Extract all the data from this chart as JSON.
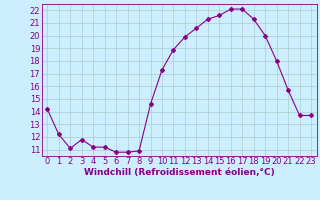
{
  "x": [
    0,
    1,
    2,
    3,
    4,
    5,
    6,
    7,
    8,
    9,
    10,
    11,
    12,
    13,
    14,
    15,
    16,
    17,
    18,
    19,
    20,
    21,
    22,
    23
  ],
  "y": [
    14.2,
    12.2,
    11.1,
    11.8,
    11.2,
    11.2,
    10.8,
    10.8,
    10.9,
    14.6,
    17.3,
    18.9,
    19.9,
    20.6,
    21.3,
    21.6,
    22.1,
    22.1,
    21.3,
    20.0,
    18.0,
    15.7,
    13.7,
    13.7
  ],
  "line_color": "#880088",
  "marker": "D",
  "marker_size": 2.0,
  "bg_color": "#cceeff",
  "grid_color": "#aacccc",
  "xlabel": "Windchill (Refroidissement éolien,°C)",
  "ylim": [
    10.5,
    22.5
  ],
  "xlim": [
    -0.5,
    23.5
  ],
  "yticks": [
    11,
    12,
    13,
    14,
    15,
    16,
    17,
    18,
    19,
    20,
    21,
    22
  ],
  "xticks": [
    0,
    1,
    2,
    3,
    4,
    5,
    6,
    7,
    8,
    9,
    10,
    11,
    12,
    13,
    14,
    15,
    16,
    17,
    18,
    19,
    20,
    21,
    22,
    23
  ],
  "xlabel_fontsize": 6.5,
  "tick_fontsize": 6.0,
  "label_color": "#880088"
}
